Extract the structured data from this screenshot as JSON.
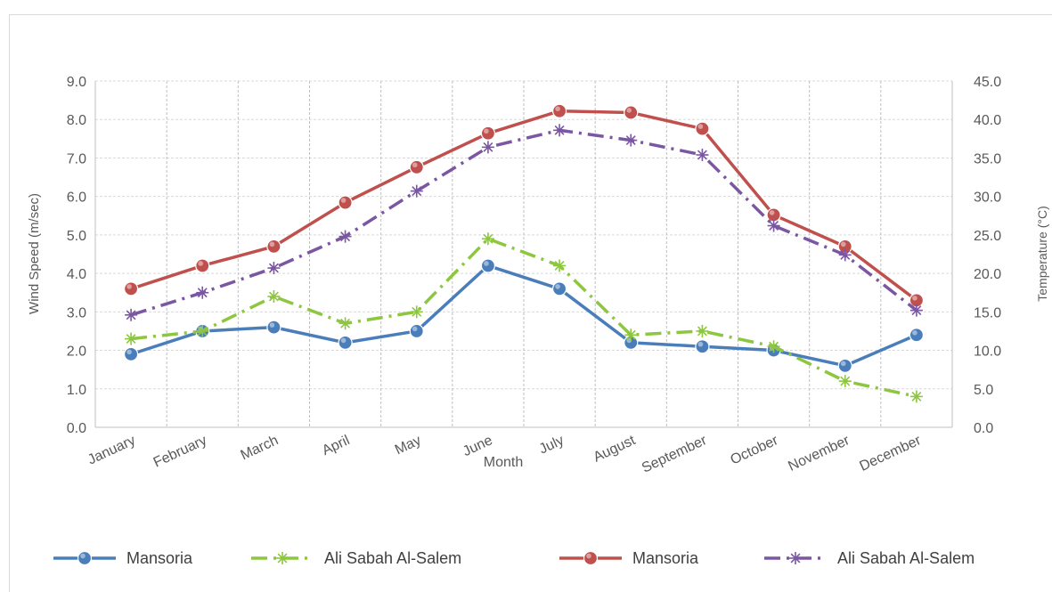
{
  "chart_data": {
    "type": "line",
    "title": "",
    "xlabel": "Month",
    "ylabel": "Wind Speed (m/sec)",
    "y2label": "Temperature (°C)",
    "ylim": [
      0,
      9
    ],
    "y2lim": [
      0,
      45
    ],
    "y_ticks": [
      "0.0",
      "1.0",
      "2.0",
      "3.0",
      "4.0",
      "5.0",
      "6.0",
      "7.0",
      "8.0",
      "9.0"
    ],
    "y2_ticks": [
      "0.0",
      "5.0",
      "10.0",
      "15.0",
      "20.0",
      "25.0",
      "30.0",
      "35.0",
      "40.0",
      "45.0"
    ],
    "grid": true,
    "legend_position": "bottom",
    "categories": [
      "January",
      "February",
      "March",
      "April",
      "May",
      "June",
      "July",
      "August",
      "September",
      "October",
      "November",
      "December"
    ],
    "series": [
      {
        "name": "Mansoria",
        "axis": "left",
        "color": "#4a7ebb",
        "style": "solid",
        "marker": "circle",
        "values": [
          1.9,
          2.5,
          2.6,
          2.2,
          2.5,
          4.2,
          3.6,
          2.2,
          2.1,
          2.0,
          1.6,
          2.4
        ]
      },
      {
        "name": "Ali Sabah Al-Salem",
        "axis": "left",
        "color": "#8dc63f",
        "style": "dashdot",
        "marker": "asterisk",
        "values": [
          2.3,
          2.5,
          3.4,
          2.7,
          3.0,
          4.9,
          4.2,
          2.4,
          2.5,
          2.1,
          1.2,
          0.8
        ]
      },
      {
        "name": "Mansoria",
        "axis": "right",
        "color": "#c0504d",
        "style": "solid",
        "marker": "circle",
        "values": [
          18.0,
          21.0,
          23.5,
          29.2,
          33.8,
          38.2,
          41.1,
          40.9,
          38.8,
          27.6,
          23.5,
          16.5
        ]
      },
      {
        "name": "Ali Sabah Al-Salem",
        "axis": "right",
        "color": "#7a56a3",
        "style": "dashdot",
        "marker": "asterisk",
        "values": [
          14.6,
          17.5,
          20.7,
          24.8,
          30.7,
          36.4,
          38.6,
          37.3,
          35.4,
          26.2,
          22.4,
          15.2
        ]
      }
    ]
  }
}
